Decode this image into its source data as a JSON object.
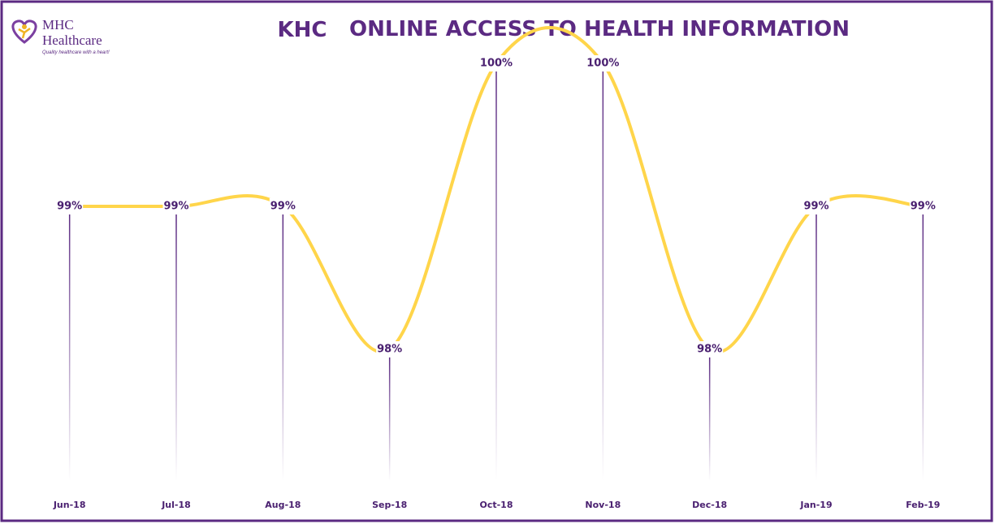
{
  "logo": {
    "name_line1": "MHC",
    "name_line2": "Healthcare",
    "tagline": "Quality healthcare with a heart!"
  },
  "chart_data": {
    "type": "line",
    "title_prefix": "KHC",
    "title": "ONLINE ACCESS TO HEALTH INFORMATION",
    "categories": [
      "Jun-18",
      "Jul-18",
      "Aug-18",
      "Sep-18",
      "Oct-18",
      "Nov-18",
      "Dec-18",
      "Jan-19",
      "Feb-19"
    ],
    "values": [
      99,
      99,
      99,
      98,
      100,
      100,
      98,
      99,
      99
    ],
    "value_labels": [
      "99%",
      "99%",
      "99%",
      "98%",
      "100%",
      "100%",
      "98%",
      "99%",
      "99%"
    ],
    "color": "#ffd54a",
    "drop_line_color": "#5b2a82",
    "smooth": true,
    "ylim": [
      98,
      100
    ]
  }
}
